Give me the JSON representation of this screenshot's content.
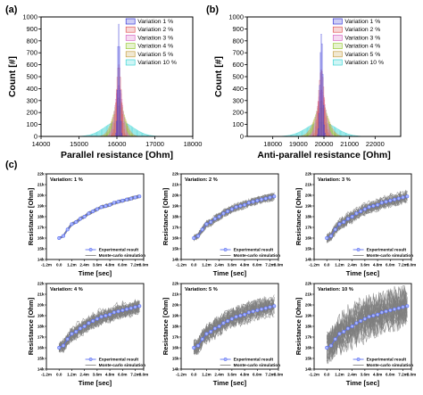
{
  "panel_labels": {
    "a": "(a)",
    "b": "(b)",
    "c": "(c)"
  },
  "legend_variations": [
    "Variation 1 %",
    "Variation 2 %",
    "Variation 3 %",
    "Variation 4 %",
    "Variation 5 %",
    "Variation 10 %"
  ],
  "variation_colors": [
    "#3b3bd9",
    "#e05a5a",
    "#d86cc8",
    "#9ccc3c",
    "#c7a24a",
    "#3fd6d6"
  ],
  "small_legend": {
    "experimental": "Experimental result",
    "montecarlo": "Monte-carlo simulation"
  },
  "colors": {
    "experimental": "#5b6ef0",
    "simulation": "#7f7f7f"
  },
  "chart_data": [
    {
      "id": "a",
      "type": "bar",
      "xlabel": "Parallel resistance [Ohm]",
      "ylabel": "Count [#]",
      "xlim": [
        14000,
        18000
      ],
      "ylim": [
        0,
        1000
      ],
      "xticks": [
        14000,
        15000,
        16000,
        17000,
        18000
      ],
      "yticks": [
        0,
        100,
        200,
        300,
        400,
        500,
        600,
        700,
        800,
        900,
        1000
      ],
      "center": 16050,
      "series": [
        {
          "name": "Variation 1 %",
          "peak": 940,
          "sigma": 30
        },
        {
          "name": "Variation 2 %",
          "peak": 600,
          "sigma": 65
        },
        {
          "name": "Variation 3 %",
          "peak": 430,
          "sigma": 100
        },
        {
          "name": "Variation 4 %",
          "peak": 325,
          "sigma": 130
        },
        {
          "name": "Variation 5 %",
          "peak": 255,
          "sigma": 165
        },
        {
          "name": "Variation 10 %",
          "peak": 130,
          "sigma": 360
        }
      ]
    },
    {
      "id": "b",
      "type": "bar",
      "xlabel": "Anti-parallel resistance [Ohm]",
      "ylabel": "Count [#]",
      "xlim": [
        17000,
        23000
      ],
      "ylim": [
        0,
        1000
      ],
      "xticks": [
        18000,
        19000,
        20000,
        21000,
        22000
      ],
      "yticks": [
        0,
        100,
        200,
        300,
        400,
        500,
        600,
        700,
        800,
        900,
        1000
      ],
      "center": 19900,
      "series": [
        {
          "name": "Variation 1 %",
          "peak": 860,
          "sigma": 55
        },
        {
          "name": "Variation 2 %",
          "peak": 560,
          "sigma": 110
        },
        {
          "name": "Variation 3 %",
          "peak": 390,
          "sigma": 165
        },
        {
          "name": "Variation 4 %",
          "peak": 300,
          "sigma": 220
        },
        {
          "name": "Variation 5 %",
          "peak": 240,
          "sigma": 275
        },
        {
          "name": "Variation 10 %",
          "peak": 120,
          "sigma": 560
        }
      ]
    },
    {
      "id": "c",
      "type": "line",
      "xlabel": "Time [sec]",
      "ylabel": "Resistance [Ohm]",
      "xlim": [
        -1.2,
        8.0
      ],
      "ylim": [
        14,
        22
      ],
      "xticklabels": [
        "-1.2m",
        "0.0",
        "1.2m",
        "2.4m",
        "3.6m",
        "4.8m",
        "6.0m",
        "7.2m",
        "8.0m"
      ],
      "xtickvals": [
        -1.2,
        0.0,
        1.2,
        2.4,
        3.6,
        4.8,
        6.0,
        7.2,
        8.0
      ],
      "yticklabels": [
        "14k",
        "15k",
        "16k",
        "17k",
        "18k",
        "19k",
        "20k",
        "21k",
        "22k"
      ],
      "experimental_x": [
        0.0,
        0.4,
        0.8,
        1.2,
        1.6,
        2.0,
        2.4,
        2.8,
        3.2,
        3.6,
        4.0,
        4.4,
        4.8,
        5.2,
        5.6,
        6.0,
        6.4,
        6.8,
        7.2,
        7.6
      ],
      "experimental_y": [
        16.0,
        16.2,
        16.8,
        17.3,
        17.5,
        17.8,
        18.0,
        18.3,
        18.5,
        18.7,
        18.9,
        19.0,
        19.1,
        19.3,
        19.4,
        19.5,
        19.6,
        19.7,
        19.8,
        19.9
      ],
      "subplots": [
        {
          "title": "Variation: 1 %",
          "spread": 0.15
        },
        {
          "title": "Variation: 2 %",
          "spread": 0.35
        },
        {
          "title": "Variation: 3 %",
          "spread": 0.55
        },
        {
          "title": "Variation: 4 %",
          "spread": 0.75
        },
        {
          "title": "Variation: 5 %",
          "spread": 0.95
        },
        {
          "title": "Variation: 10 %",
          "spread": 1.9
        }
      ]
    }
  ]
}
